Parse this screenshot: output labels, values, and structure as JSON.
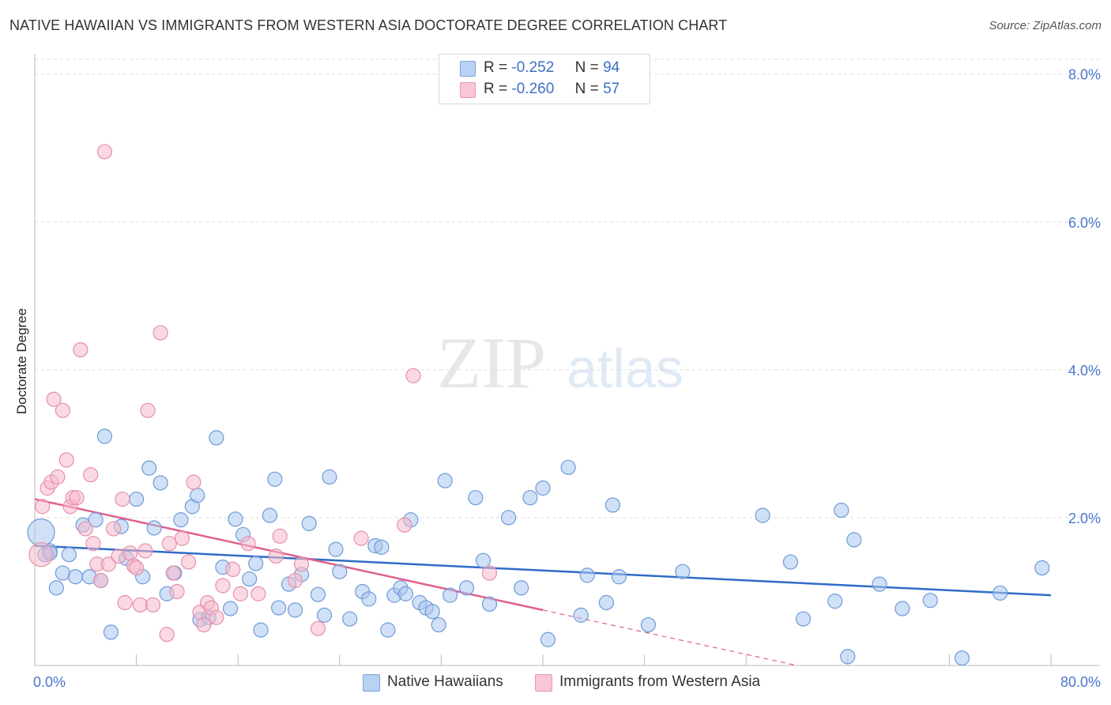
{
  "header": {
    "title": "NATIVE HAWAIIAN VS IMMIGRANTS FROM WESTERN ASIA DOCTORATE DEGREE CORRELATION CHART",
    "source": "Source: ZipAtlas.com"
  },
  "watermark": {
    "zip": "ZIP",
    "atlas": "atlas"
  },
  "legend_stats": [
    {
      "r_label": "R =",
      "r_value": "-0.252",
      "n_label": "N =",
      "n_value": "94"
    },
    {
      "r_label": "R =",
      "r_value": "-0.260",
      "n_label": "N =",
      "n_value": "57"
    }
  ],
  "bottom_legend": {
    "series1": "Native Hawaiians",
    "series2": "Immigrants from Western Asia"
  },
  "colors": {
    "blue_fill": "#a9c7ef",
    "blue_stroke": "#6f9ad8",
    "blue_line": "#2f6cc7",
    "pink_fill": "#f5b9cc",
    "pink_stroke": "#e68fab",
    "pink_line": "#e0608d",
    "grid": "#dddddd",
    "tick_text": "#4a76c9"
  },
  "chart_data": {
    "type": "scatter",
    "title": "NATIVE HAWAIIAN VS IMMIGRANTS FROM WESTERN ASIA DOCTORATE DEGREE CORRELATION CHART",
    "xlabel": "",
    "ylabel": "Doctorate Degree",
    "xlim": [
      0,
      80
    ],
    "ylim": [
      0,
      8.2
    ],
    "x_tick_labels": [
      "0.0%",
      "80.0%"
    ],
    "y_ticks": [
      2,
      4,
      6,
      8
    ],
    "y_tick_labels": [
      "2.0%",
      "4.0%",
      "6.0%",
      "8.0%"
    ],
    "series": [
      {
        "name": "Native Hawaiians",
        "r": -0.252,
        "n": 94,
        "trend": {
          "x": [
            0,
            80
          ],
          "y": [
            1.62,
            0.95
          ]
        },
        "points": [
          [
            0.5,
            1.8
          ],
          [
            0.8,
            1.5
          ],
          [
            1.2,
            1.55
          ],
          [
            1.7,
            1.05
          ],
          [
            2.2,
            1.25
          ],
          [
            2.7,
            1.5
          ],
          [
            3.2,
            1.2
          ],
          [
            3.8,
            1.9
          ],
          [
            4.3,
            1.2
          ],
          [
            4.8,
            1.97
          ],
          [
            5.5,
            3.1
          ],
          [
            6.0,
            0.45
          ],
          [
            6.8,
            1.88
          ],
          [
            7.2,
            1.45
          ],
          [
            8.0,
            2.25
          ],
          [
            8.5,
            1.2
          ],
          [
            9.0,
            2.67
          ],
          [
            9.4,
            1.86
          ],
          [
            9.9,
            2.47
          ],
          [
            10.4,
            0.97
          ],
          [
            11.0,
            1.25
          ],
          [
            11.5,
            1.97
          ],
          [
            12.4,
            2.15
          ],
          [
            12.8,
            2.3
          ],
          [
            13.0,
            0.62
          ],
          [
            13.7,
            0.65
          ],
          [
            14.3,
            3.08
          ],
          [
            14.8,
            1.33
          ],
          [
            15.4,
            0.77
          ],
          [
            15.8,
            1.98
          ],
          [
            16.4,
            1.77
          ],
          [
            16.9,
            1.17
          ],
          [
            17.4,
            1.38
          ],
          [
            17.8,
            0.48
          ],
          [
            18.5,
            2.03
          ],
          [
            18.9,
            2.52
          ],
          [
            19.2,
            0.78
          ],
          [
            20.0,
            1.1
          ],
          [
            20.5,
            0.75
          ],
          [
            21.0,
            1.23
          ],
          [
            21.6,
            1.92
          ],
          [
            22.3,
            0.96
          ],
          [
            22.8,
            0.68
          ],
          [
            23.2,
            2.55
          ],
          [
            23.7,
            1.57
          ],
          [
            24.0,
            1.27
          ],
          [
            24.8,
            0.63
          ],
          [
            25.8,
            1.0
          ],
          [
            26.3,
            0.9
          ],
          [
            26.8,
            1.62
          ],
          [
            27.3,
            1.6
          ],
          [
            27.8,
            0.48
          ],
          [
            28.3,
            0.95
          ],
          [
            28.8,
            1.05
          ],
          [
            29.2,
            0.97
          ],
          [
            29.6,
            1.97
          ],
          [
            30.3,
            0.85
          ],
          [
            30.8,
            0.78
          ],
          [
            31.3,
            0.73
          ],
          [
            31.8,
            0.55
          ],
          [
            32.3,
            2.5
          ],
          [
            32.7,
            0.95
          ],
          [
            34.0,
            1.05
          ],
          [
            34.7,
            2.27
          ],
          [
            35.3,
            1.42
          ],
          [
            35.8,
            0.83
          ],
          [
            37.3,
            2.0
          ],
          [
            38.3,
            1.05
          ],
          [
            39.0,
            2.27
          ],
          [
            40.0,
            2.4
          ],
          [
            40.4,
            0.35
          ],
          [
            42.0,
            2.68
          ],
          [
            43.0,
            0.68
          ],
          [
            43.5,
            1.22
          ],
          [
            45.0,
            0.85
          ],
          [
            45.5,
            2.17
          ],
          [
            46.0,
            1.2
          ],
          [
            48.3,
            0.55
          ],
          [
            51.0,
            1.27
          ],
          [
            57.3,
            2.03
          ],
          [
            59.5,
            1.4
          ],
          [
            60.5,
            0.63
          ],
          [
            63.0,
            0.87
          ],
          [
            63.5,
            2.1
          ],
          [
            64.0,
            0.12
          ],
          [
            64.5,
            1.7
          ],
          [
            66.5,
            1.1
          ],
          [
            68.3,
            0.77
          ],
          [
            70.5,
            0.88
          ],
          [
            73.0,
            0.1
          ],
          [
            76.0,
            0.98
          ],
          [
            79.3,
            1.32
          ],
          [
            1.2,
            1.52
          ],
          [
            5.2,
            1.15
          ]
        ]
      },
      {
        "name": "Immigrants from Western Asia",
        "r": -0.26,
        "n": 57,
        "trend": {
          "x": [
            0,
            40
          ],
          "y": [
            2.25,
            0.75
          ]
        },
        "trend_extended": {
          "x": [
            40,
            60
          ],
          "y": [
            0.75,
            0.0
          ]
        },
        "points": [
          [
            0.5,
            1.5
          ],
          [
            0.6,
            2.15
          ],
          [
            1.0,
            2.4
          ],
          [
            1.3,
            2.48
          ],
          [
            1.5,
            3.6
          ],
          [
            1.8,
            2.55
          ],
          [
            2.2,
            3.45
          ],
          [
            2.5,
            2.78
          ],
          [
            2.8,
            2.15
          ],
          [
            3.0,
            2.27
          ],
          [
            3.3,
            2.27
          ],
          [
            3.6,
            4.27
          ],
          [
            4.0,
            1.85
          ],
          [
            4.4,
            2.58
          ],
          [
            4.6,
            1.65
          ],
          [
            4.9,
            1.37
          ],
          [
            5.2,
            1.15
          ],
          [
            5.5,
            6.95
          ],
          [
            5.8,
            1.37
          ],
          [
            6.2,
            1.85
          ],
          [
            6.6,
            1.48
          ],
          [
            6.9,
            2.25
          ],
          [
            7.1,
            0.85
          ],
          [
            7.5,
            1.52
          ],
          [
            7.8,
            1.35
          ],
          [
            8.0,
            1.32
          ],
          [
            8.3,
            0.82
          ],
          [
            8.7,
            1.55
          ],
          [
            8.9,
            3.45
          ],
          [
            9.3,
            0.82
          ],
          [
            9.9,
            4.5
          ],
          [
            10.4,
            0.42
          ],
          [
            10.6,
            1.65
          ],
          [
            10.9,
            1.25
          ],
          [
            11.2,
            1.0
          ],
          [
            11.6,
            1.72
          ],
          [
            12.1,
            1.4
          ],
          [
            12.5,
            2.48
          ],
          [
            13.0,
            0.72
          ],
          [
            13.3,
            0.55
          ],
          [
            13.6,
            0.85
          ],
          [
            13.9,
            0.78
          ],
          [
            14.3,
            0.65
          ],
          [
            14.8,
            1.08
          ],
          [
            15.6,
            1.3
          ],
          [
            16.2,
            0.97
          ],
          [
            16.8,
            1.65
          ],
          [
            17.6,
            0.97
          ],
          [
            19.0,
            1.48
          ],
          [
            19.3,
            1.75
          ],
          [
            21.0,
            1.37
          ],
          [
            22.3,
            0.5
          ],
          [
            25.7,
            1.72
          ],
          [
            29.1,
            1.9
          ],
          [
            29.8,
            3.92
          ],
          [
            35.8,
            1.25
          ],
          [
            20.5,
            1.15
          ]
        ]
      }
    ]
  }
}
